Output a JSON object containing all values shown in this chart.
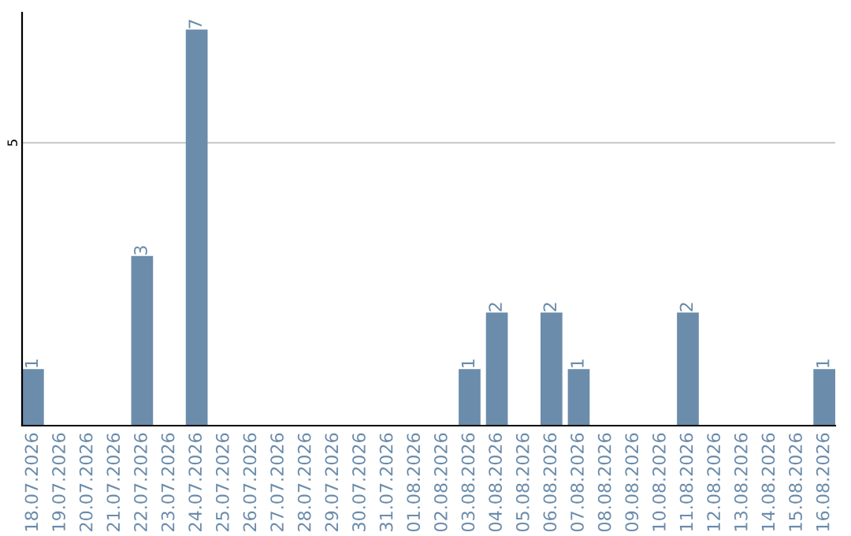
{
  "chart_data": {
    "type": "bar",
    "categories": [
      "18.07.2026",
      "19.07.2026",
      "20.07.2026",
      "21.07.2026",
      "22.07.2026",
      "23.07.2026",
      "24.07.2026",
      "25.07.2026",
      "26.07.2026",
      "27.07.2026",
      "28.07.2026",
      "29.07.2026",
      "30.07.2026",
      "31.07.2026",
      "01.08.2026",
      "02.08.2026",
      "03.08.2026",
      "04.08.2026",
      "05.08.2026",
      "06.08.2026",
      "07.08.2026",
      "08.08.2026",
      "09.08.2026",
      "10.08.2026",
      "11.08.2026",
      "12.08.2026",
      "13.08.2026",
      "14.08.2026",
      "15.08.2026",
      "16.08.2026"
    ],
    "values": [
      1,
      0,
      0,
      0,
      3,
      0,
      7,
      0,
      0,
      0,
      0,
      0,
      0,
      0,
      0,
      0,
      1,
      2,
      0,
      2,
      1,
      0,
      0,
      0,
      2,
      0,
      0,
      0,
      0,
      1
    ],
    "value_labels": [
      "1",
      null,
      null,
      null,
      "3",
      null,
      "7",
      null,
      null,
      null,
      null,
      null,
      null,
      null,
      null,
      null,
      "1",
      "2",
      null,
      "2",
      "1",
      null,
      null,
      null,
      "2",
      null,
      null,
      null,
      null,
      "1"
    ],
    "color": "#6b8cab",
    "ylim": [
      0,
      7.3
    ],
    "yticks": [
      5
    ],
    "grid": "y"
  }
}
